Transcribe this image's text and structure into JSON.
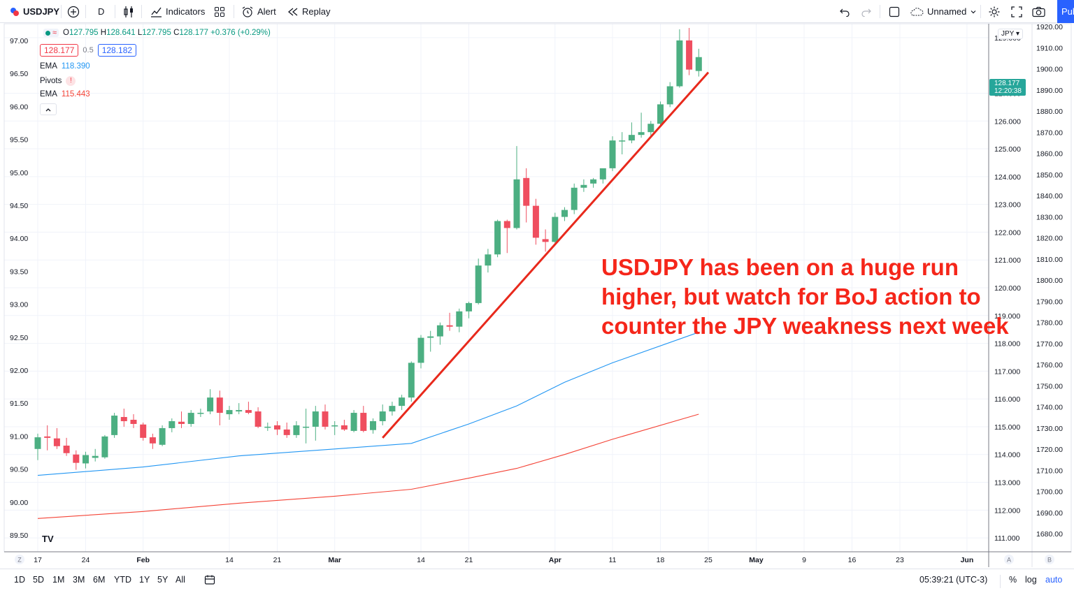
{
  "toolbar": {
    "symbol": "USDJPY",
    "interval": "D",
    "indicators_label": "Indicators",
    "alert_label": "Alert",
    "replay_label": "Replay",
    "layout_name": "Unnamed",
    "publish_label": "Pub"
  },
  "legend": {
    "ohlc": {
      "o_label": "O",
      "o": "127.795",
      "h_label": "H",
      "h": "128.641",
      "l_label": "L",
      "l": "127.795",
      "c_label": "C",
      "c": "128.177",
      "change": "+0.376 (+0.29%)"
    },
    "bid": "128.177",
    "spread": "0.5",
    "ask": "128.182",
    "ema1_label": "EMA",
    "ema1_value": "118.390",
    "pivots_label": "Pivots",
    "pivots_warning": "!",
    "ema2_label": "EMA",
    "ema2_value": "115.443"
  },
  "price_tag": {
    "price": "128.177",
    "countdown": "12:20:38"
  },
  "currency_badge": "JPY",
  "annotation": "USDJPY has been on a huge run higher, but watch for BoJ action to counter the JPY weakness next week",
  "bottombar": {
    "ranges": [
      "1D",
      "5D",
      "1M",
      "3M",
      "6M",
      "YTD",
      "1Y",
      "5Y",
      "All"
    ],
    "clock": "05:39:21 (UTC-3)",
    "percent": "%",
    "log": "log",
    "auto": "auto"
  },
  "colors": {
    "up": "#4caf82",
    "down": "#ef4e5f",
    "ema_fast": "#2196f3",
    "ema_slow": "#f44336",
    "trendline": "#e8291c",
    "accent": "#2962ff"
  },
  "chart_data": {
    "type": "candlestick",
    "symbol": "USDJPY",
    "interval": "D",
    "candles": [
      {
        "date": "2022-01-17",
        "o": 114.2,
        "h": 114.75,
        "l": 113.8,
        "c": 114.62
      },
      {
        "date": "2022-01-18",
        "o": 114.65,
        "h": 115.05,
        "l": 114.15,
        "c": 114.6
      },
      {
        "date": "2022-01-19",
        "o": 114.58,
        "h": 114.95,
        "l": 114.2,
        "c": 114.3
      },
      {
        "date": "2022-01-20",
        "o": 114.32,
        "h": 114.6,
        "l": 113.95,
        "c": 114.05
      },
      {
        "date": "2022-01-21",
        "o": 114.0,
        "h": 114.15,
        "l": 113.45,
        "c": 113.7
      },
      {
        "date": "2022-01-24",
        "o": 113.68,
        "h": 114.1,
        "l": 113.5,
        "c": 113.98
      },
      {
        "date": "2022-01-25",
        "o": 113.88,
        "h": 114.2,
        "l": 113.75,
        "c": 113.95
      },
      {
        "date": "2022-01-26",
        "o": 113.9,
        "h": 114.7,
        "l": 113.85,
        "c": 114.65
      },
      {
        "date": "2022-01-27",
        "o": 114.7,
        "h": 115.5,
        "l": 114.6,
        "c": 115.4
      },
      {
        "date": "2022-01-28",
        "o": 115.35,
        "h": 115.65,
        "l": 115.0,
        "c": 115.2
      },
      {
        "date": "2022-01-31",
        "o": 115.25,
        "h": 115.45,
        "l": 114.95,
        "c": 115.1
      },
      {
        "date": "2022-02-01",
        "o": 115.08,
        "h": 115.15,
        "l": 114.5,
        "c": 114.6
      },
      {
        "date": "2022-02-02",
        "o": 114.62,
        "h": 114.75,
        "l": 114.2,
        "c": 114.4
      },
      {
        "date": "2022-02-03",
        "o": 114.35,
        "h": 115.05,
        "l": 114.3,
        "c": 114.95
      },
      {
        "date": "2022-02-04",
        "o": 114.95,
        "h": 115.3,
        "l": 114.8,
        "c": 115.2
      },
      {
        "date": "2022-02-07",
        "o": 115.18,
        "h": 115.55,
        "l": 114.95,
        "c": 115.1
      },
      {
        "date": "2022-02-08",
        "o": 115.1,
        "h": 115.6,
        "l": 115.0,
        "c": 115.5
      },
      {
        "date": "2022-02-09",
        "o": 115.5,
        "h": 115.65,
        "l": 115.35,
        "c": 115.5
      },
      {
        "date": "2022-02-10",
        "o": 115.55,
        "h": 116.35,
        "l": 115.45,
        "c": 116.05
      },
      {
        "date": "2022-02-11",
        "o": 116.05,
        "h": 116.3,
        "l": 115.05,
        "c": 115.5
      },
      {
        "date": "2022-02-14",
        "o": 115.45,
        "h": 115.75,
        "l": 115.25,
        "c": 115.6
      },
      {
        "date": "2022-02-15",
        "o": 115.55,
        "h": 115.85,
        "l": 115.45,
        "c": 115.6
      },
      {
        "date": "2022-02-16",
        "o": 115.6,
        "h": 115.9,
        "l": 115.45,
        "c": 115.5
      },
      {
        "date": "2022-02-17",
        "o": 115.55,
        "h": 115.7,
        "l": 114.95,
        "c": 115.0
      },
      {
        "date": "2022-02-18",
        "o": 114.98,
        "h": 115.15,
        "l": 114.85,
        "c": 115.0
      },
      {
        "date": "2022-02-21",
        "o": 115.05,
        "h": 115.2,
        "l": 114.7,
        "c": 114.9
      },
      {
        "date": "2022-02-22",
        "o": 114.9,
        "h": 115.15,
        "l": 114.6,
        "c": 114.7
      },
      {
        "date": "2022-02-23",
        "o": 114.7,
        "h": 115.2,
        "l": 114.6,
        "c": 115.05
      },
      {
        "date": "2022-02-24",
        "o": 115.0,
        "h": 115.65,
        "l": 114.4,
        "c": 115.0
      },
      {
        "date": "2022-02-25",
        "o": 115.0,
        "h": 115.75,
        "l": 114.5,
        "c": 115.55
      },
      {
        "date": "2022-02-28",
        "o": 115.55,
        "h": 115.8,
        "l": 114.9,
        "c": 115.0
      },
      {
        "date": "2022-03-01",
        "o": 115.02,
        "h": 115.2,
        "l": 114.7,
        "c": 115.05
      },
      {
        "date": "2022-03-02",
        "o": 115.05,
        "h": 115.25,
        "l": 114.85,
        "c": 114.9
      },
      {
        "date": "2022-03-03",
        "o": 114.85,
        "h": 115.6,
        "l": 114.8,
        "c": 115.5
      },
      {
        "date": "2022-03-04",
        "o": 115.5,
        "h": 115.75,
        "l": 114.8,
        "c": 114.85
      },
      {
        "date": "2022-03-07",
        "o": 114.88,
        "h": 115.3,
        "l": 114.75,
        "c": 115.2
      },
      {
        "date": "2022-03-08",
        "o": 115.2,
        "h": 115.8,
        "l": 115.05,
        "c": 115.55
      },
      {
        "date": "2022-03-09",
        "o": 115.55,
        "h": 115.9,
        "l": 115.4,
        "c": 115.75
      },
      {
        "date": "2022-03-10",
        "o": 115.75,
        "h": 116.15,
        "l": 115.6,
        "c": 116.05
      },
      {
        "date": "2022-03-11",
        "o": 116.05,
        "h": 117.35,
        "l": 115.9,
        "c": 117.3
      },
      {
        "date": "2022-03-14",
        "o": 117.3,
        "h": 118.3,
        "l": 117.1,
        "c": 118.2
      },
      {
        "date": "2022-03-15",
        "o": 118.2,
        "h": 118.45,
        "l": 117.7,
        "c": 118.25
      },
      {
        "date": "2022-03-16",
        "o": 118.25,
        "h": 118.75,
        "l": 117.95,
        "c": 118.65
      },
      {
        "date": "2022-03-17",
        "o": 118.65,
        "h": 119.1,
        "l": 118.45,
        "c": 118.6
      },
      {
        "date": "2022-03-18",
        "o": 118.6,
        "h": 119.25,
        "l": 118.4,
        "c": 119.15
      },
      {
        "date": "2022-03-21",
        "o": 119.15,
        "h": 119.5,
        "l": 118.9,
        "c": 119.45
      },
      {
        "date": "2022-03-22",
        "o": 119.45,
        "h": 121.05,
        "l": 119.4,
        "c": 120.8
      },
      {
        "date": "2022-03-23",
        "o": 120.8,
        "h": 121.4,
        "l": 120.55,
        "c": 121.2
      },
      {
        "date": "2022-03-24",
        "o": 121.2,
        "h": 122.45,
        "l": 121.1,
        "c": 122.4
      },
      {
        "date": "2022-03-25",
        "o": 122.4,
        "h": 122.45,
        "l": 121.25,
        "c": 122.15
      },
      {
        "date": "2022-03-28",
        "o": 122.15,
        "h": 125.1,
        "l": 122.1,
        "c": 123.9
      },
      {
        "date": "2022-03-29",
        "o": 123.95,
        "h": 124.3,
        "l": 122.35,
        "c": 122.95
      },
      {
        "date": "2022-03-30",
        "o": 122.95,
        "h": 123.2,
        "l": 121.55,
        "c": 121.8
      },
      {
        "date": "2022-03-31",
        "o": 121.75,
        "h": 122.1,
        "l": 121.3,
        "c": 121.65
      },
      {
        "date": "2022-04-01",
        "o": 121.65,
        "h": 122.7,
        "l": 121.55,
        "c": 122.55
      },
      {
        "date": "2022-04-04",
        "o": 122.55,
        "h": 122.9,
        "l": 122.4,
        "c": 122.8
      },
      {
        "date": "2022-04-05",
        "o": 122.8,
        "h": 123.75,
        "l": 122.65,
        "c": 123.6
      },
      {
        "date": "2022-04-06",
        "o": 123.6,
        "h": 123.9,
        "l": 123.45,
        "c": 123.7
      },
      {
        "date": "2022-04-07",
        "o": 123.75,
        "h": 123.95,
        "l": 123.6,
        "c": 123.9
      },
      {
        "date": "2022-04-08",
        "o": 123.9,
        "h": 124.2,
        "l": 123.75,
        "c": 124.3
      },
      {
        "date": "2022-04-11",
        "o": 124.3,
        "h": 125.45,
        "l": 124.2,
        "c": 125.3
      },
      {
        "date": "2022-04-12",
        "o": 125.3,
        "h": 125.6,
        "l": 124.8,
        "c": 125.3
      },
      {
        "date": "2022-04-13",
        "o": 125.3,
        "h": 125.95,
        "l": 125.2,
        "c": 125.5
      },
      {
        "date": "2022-04-14",
        "o": 125.5,
        "h": 126.3,
        "l": 125.4,
        "c": 125.6
      },
      {
        "date": "2022-04-15",
        "o": 125.6,
        "h": 126.0,
        "l": 125.4,
        "c": 125.9
      },
      {
        "date": "2022-04-18",
        "o": 125.9,
        "h": 126.7,
        "l": 125.8,
        "c": 126.6
      },
      {
        "date": "2022-04-19",
        "o": 126.6,
        "h": 127.4,
        "l": 126.5,
        "c": 127.25
      },
      {
        "date": "2022-04-20",
        "o": 127.25,
        "h": 129.3,
        "l": 127.2,
        "c": 128.9
      },
      {
        "date": "2022-04-21",
        "o": 128.9,
        "h": 129.35,
        "l": 127.65,
        "c": 127.85
      },
      {
        "date": "2022-04-22",
        "o": 127.8,
        "h": 128.6,
        "l": 127.6,
        "c": 128.3
      }
    ],
    "ema_fast": {
      "label": "EMA",
      "last": 118.39,
      "points": [
        [
          "2022-01-17",
          113.25
        ],
        [
          "2022-02-01",
          113.55
        ],
        [
          "2022-02-15",
          113.95
        ],
        [
          "2022-03-01",
          114.2
        ],
        [
          "2022-03-11",
          114.4
        ],
        [
          "2022-03-21",
          115.1
        ],
        [
          "2022-03-28",
          115.75
        ],
        [
          "2022-04-04",
          116.6
        ],
        [
          "2022-04-11",
          117.3
        ],
        [
          "2022-04-22",
          118.4
        ]
      ]
    },
    "ema_slow": {
      "label": "EMA",
      "last": 115.443,
      "points": [
        [
          "2022-01-17",
          111.7
        ],
        [
          "2022-02-01",
          111.95
        ],
        [
          "2022-02-15",
          112.25
        ],
        [
          "2022-03-01",
          112.5
        ],
        [
          "2022-03-11",
          112.75
        ],
        [
          "2022-03-21",
          113.15
        ],
        [
          "2022-03-28",
          113.5
        ],
        [
          "2022-04-04",
          114.0
        ],
        [
          "2022-04-11",
          114.55
        ],
        [
          "2022-04-22",
          115.45
        ]
      ]
    },
    "trendline": [
      [
        "2022-03-08",
        114.6
      ],
      [
        "2022-04-25",
        127.75
      ]
    ],
    "x_ticks": [
      "17",
      "24",
      "Feb",
      "14",
      "21",
      "Mar",
      "14",
      "21",
      "Apr",
      "11",
      "18",
      "25",
      "May",
      "9",
      "16",
      "23",
      "Jun"
    ],
    "x_tick_dates": [
      "2022-01-17",
      "2022-01-24",
      "2022-02-01",
      "2022-02-14",
      "2022-02-21",
      "2022-03-01",
      "2022-03-14",
      "2022-03-21",
      "2022-04-01",
      "2022-04-11",
      "2022-04-18",
      "2022-04-25",
      "2022-05-01",
      "2022-05-09",
      "2022-05-16",
      "2022-05-23",
      "2022-06-01"
    ],
    "x_range": [
      "2022-01-17",
      "2022-06-01"
    ],
    "left_axis": {
      "ticks": [
        "97.00",
        "96.50",
        "96.00",
        "95.50",
        "95.00",
        "94.50",
        "94.00",
        "93.50",
        "93.00",
        "92.50",
        "92.00",
        "91.50",
        "91.00",
        "90.50",
        "90.00",
        "89.50"
      ]
    },
    "right_axis": {
      "ticks": [
        "129.000",
        "127.000",
        "126.000",
        "125.000",
        "124.000",
        "123.000",
        "122.000",
        "121.000",
        "120.000",
        "119.000",
        "118.000",
        "117.000",
        "116.000",
        "115.000",
        "114.000",
        "113.000",
        "112.000",
        "111.000"
      ],
      "range": [
        110.5,
        129.5
      ]
    },
    "far_right_axis": {
      "ticks": [
        "1920.00",
        "1910.00",
        "1900.00",
        "1890.00",
        "1880.00",
        "1870.00",
        "1860.00",
        "1850.00",
        "1840.00",
        "1830.00",
        "1820.00",
        "1810.00",
        "1800.00",
        "1790.00",
        "1780.00",
        "1770.00",
        "1760.00",
        "1750.00",
        "1740.00",
        "1730.00",
        "1720.00",
        "1710.00",
        "1700.00",
        "1690.00",
        "1680.00"
      ]
    },
    "axis_corner_labels": [
      "Z",
      "A",
      "B"
    ],
    "grid": true
  }
}
